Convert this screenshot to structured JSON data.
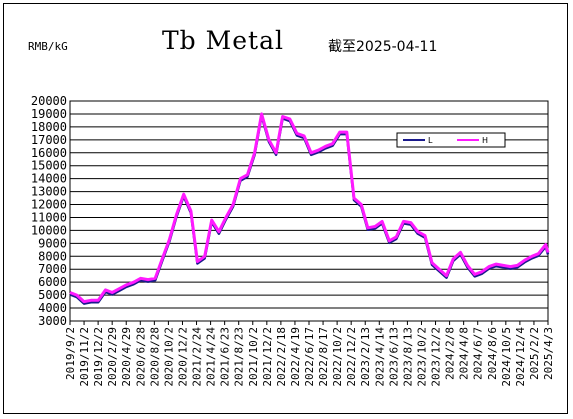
{
  "header": {
    "unit": "RMB/kG",
    "title": "Tb Metal",
    "date": "截至2025-04-11"
  },
  "chart_data": {
    "type": "line",
    "title": "Tb Metal",
    "ylabel": "RMB/kG",
    "ylim": [
      3000,
      20000
    ],
    "ytick_step": 1000,
    "grid": "horizontal",
    "legend_position": "top-right",
    "legend": [
      "L",
      "H"
    ],
    "x_tick_labels": [
      "2019/9/2",
      "2019/11/2",
      "2019/12/2",
      "2020/2/29",
      "2020/4/29",
      "2020/6/28",
      "2020/8/28",
      "2020/10/2",
      "2020/12/2",
      "2021/2/24",
      "2021/4/24",
      "2021/6/23",
      "2021/8/23",
      "2021/10/2",
      "2021/12/2",
      "2022/2/18",
      "2022/4/19",
      "2022/6/17",
      "2022/8/17",
      "2022/10/2",
      "2022/12/2",
      "2023/2/13",
      "2023/4/14",
      "2023/6/13",
      "2023/8/13",
      "2023/10/2",
      "2023/12/2",
      "2024/2/8",
      "2024/4/8",
      "2024/6/7",
      "2024/8/6",
      "2024/10/5",
      "2024/12/4",
      "2025/2/2",
      "2025/4/3"
    ],
    "x": [
      "2019-09-02",
      "2019-10-01",
      "2019-11-01",
      "2019-12-01",
      "2020-01-01",
      "2020-02-01",
      "2020-03-01",
      "2020-04-01",
      "2020-05-01",
      "2020-06-01",
      "2020-07-01",
      "2020-08-01",
      "2020-09-01",
      "2020-10-01",
      "2020-11-01",
      "2020-12-01",
      "2021-01-01",
      "2021-02-01",
      "2021-03-01",
      "2021-04-01",
      "2021-05-01",
      "2021-06-01",
      "2021-07-01",
      "2021-08-01",
      "2021-09-01",
      "2021-10-01",
      "2021-11-01",
      "2021-12-01",
      "2022-01-01",
      "2022-02-01",
      "2022-03-01",
      "2022-04-01",
      "2022-05-01",
      "2022-06-01",
      "2022-07-01",
      "2022-08-01",
      "2022-09-01",
      "2022-10-01",
      "2022-11-01",
      "2022-12-01",
      "2023-01-01",
      "2023-02-01",
      "2023-03-01",
      "2023-04-01",
      "2023-05-01",
      "2023-06-01",
      "2023-07-01",
      "2023-08-01",
      "2023-09-01",
      "2023-10-01",
      "2023-11-01",
      "2023-12-01",
      "2024-01-01",
      "2024-02-01",
      "2024-03-01",
      "2024-04-01",
      "2024-05-01",
      "2024-06-01",
      "2024-07-01",
      "2024-08-01",
      "2024-09-01",
      "2024-10-01",
      "2024-11-01",
      "2024-12-01",
      "2025-01-01",
      "2025-02-01",
      "2025-03-01",
      "2025-04-01",
      "2025-04-11"
    ],
    "series": [
      {
        "name": "L",
        "color": "#1a1a8c",
        "values": [
          5200,
          5000,
          4500,
          4600,
          4600,
          5400,
          5200,
          5500,
          5800,
          6000,
          6300,
          6200,
          6300,
          7800,
          9300,
          11200,
          12800,
          11500,
          7600,
          8000,
          10800,
          9900,
          11000,
          12000,
          14000,
          14300,
          16000,
          19000,
          17000,
          16000,
          18800,
          18600,
          17500,
          17300,
          16000,
          16200,
          16500,
          16700,
          17600,
          17600,
          12500,
          12000,
          10200,
          10300,
          10700,
          9200,
          9500,
          10700,
          10600,
          9900,
          9600,
          7500,
          7000,
          6500,
          7800,
          8300,
          7300,
          6600,
          6800,
          7200,
          7400,
          7300,
          7200,
          7300,
          7700,
          8000,
          8200,
          8900,
          8300
        ],
        "draw_below": true
      },
      {
        "name": "H",
        "color": "#ff1aff",
        "values": [
          5200,
          5000,
          4500,
          4600,
          4600,
          5400,
          5200,
          5500,
          5800,
          6000,
          6300,
          6200,
          6300,
          7800,
          9300,
          11200,
          12800,
          11500,
          7600,
          8000,
          10800,
          9900,
          11000,
          12000,
          14000,
          14300,
          16000,
          19000,
          17000,
          16000,
          18800,
          18600,
          17500,
          17300,
          16000,
          16200,
          16500,
          16700,
          17600,
          17600,
          12500,
          12000,
          10200,
          10300,
          10700,
          9200,
          9500,
          10700,
          10600,
          9900,
          9600,
          7500,
          7000,
          6500,
          7800,
          8300,
          7300,
          6600,
          6800,
          7200,
          7400,
          7300,
          7200,
          7300,
          7700,
          8000,
          8200,
          8900,
          8300
        ]
      }
    ]
  }
}
